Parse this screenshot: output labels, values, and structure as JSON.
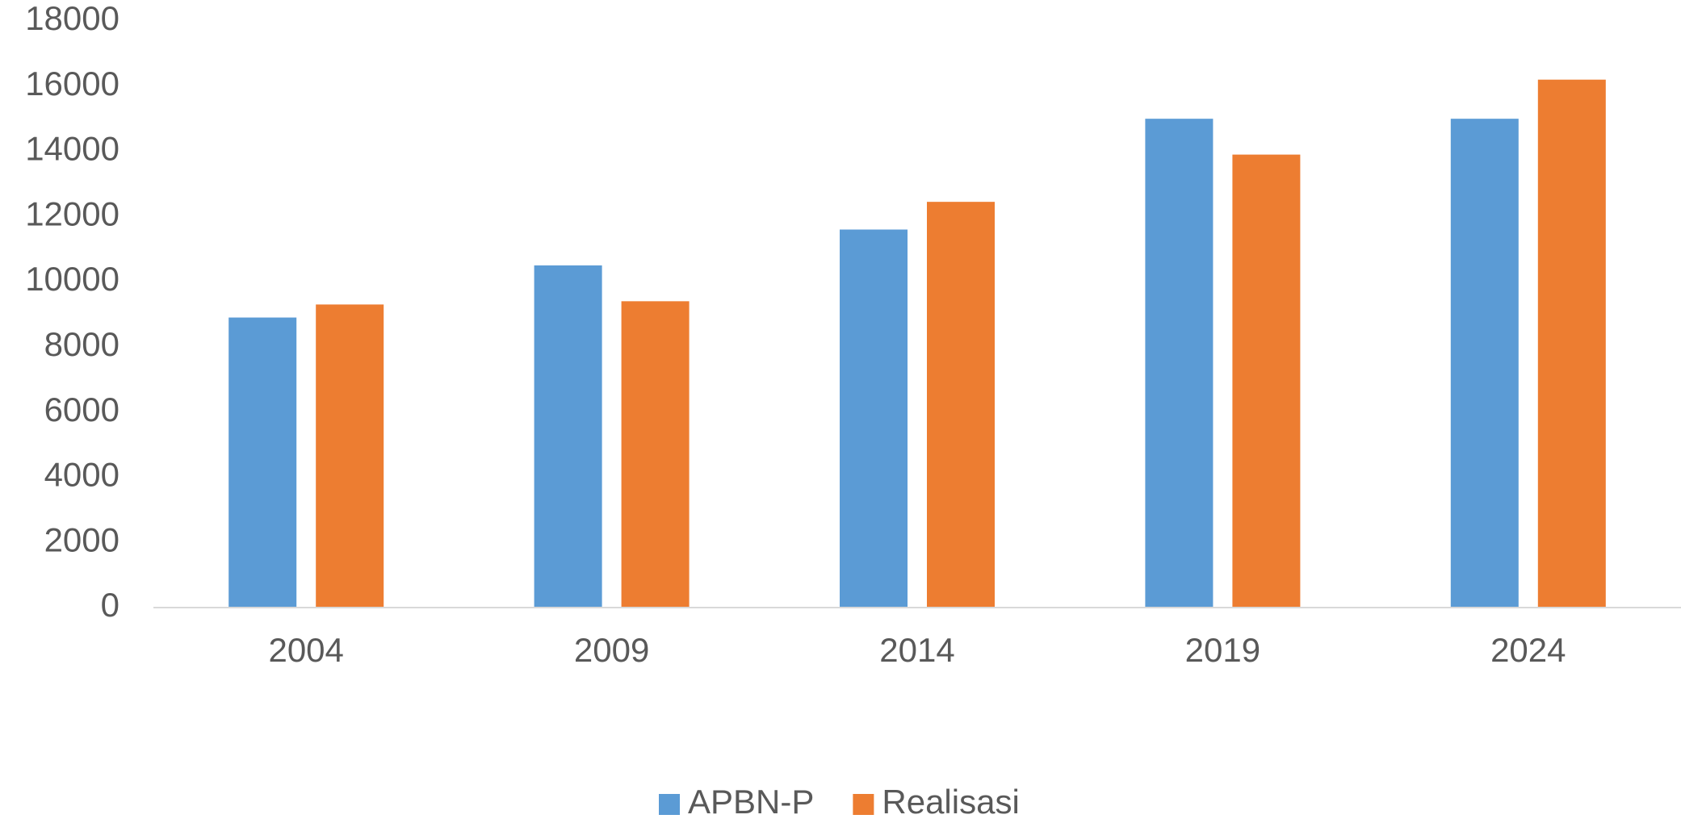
{
  "chart_data": {
    "type": "bar",
    "categories": [
      "2004",
      "2009",
      "2014",
      "2019",
      "2024"
    ],
    "series": [
      {
        "name": "APBN-P",
        "color": "#5b9bd5",
        "values": [
          8900,
          10500,
          11600,
          15000,
          15000
        ]
      },
      {
        "name": "Realisasi",
        "color": "#ed7d31",
        "values": [
          9300,
          9400,
          12450,
          13900,
          16200
        ]
      }
    ],
    "ylim": [
      0,
      18000
    ],
    "yticks": [
      0,
      2000,
      4000,
      6000,
      8000,
      10000,
      12000,
      14000,
      16000,
      18000
    ],
    "grid": false,
    "legend": "bottom"
  }
}
